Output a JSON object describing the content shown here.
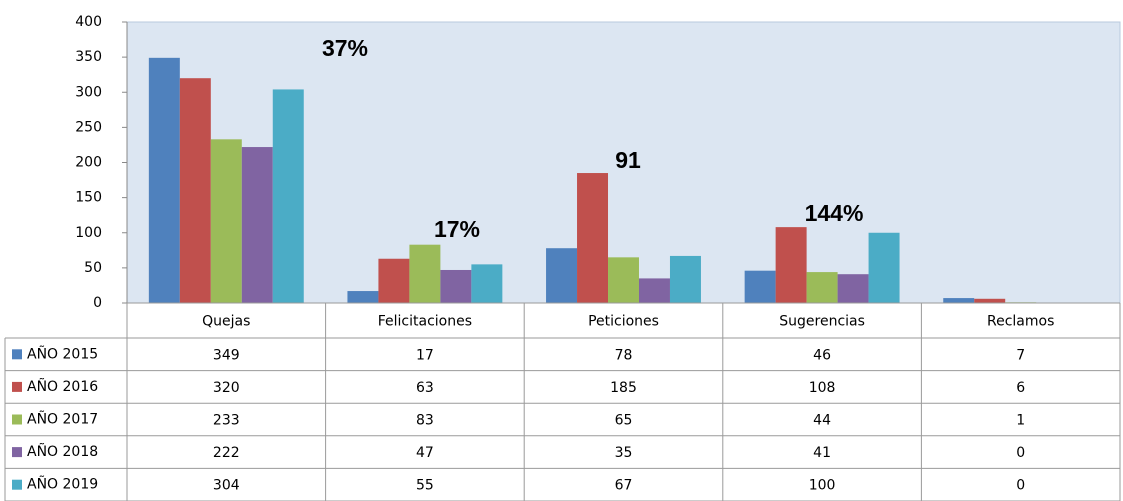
{
  "chart_data": {
    "type": "bar",
    "categories": [
      "Quejas",
      "Felicitaciones",
      "Peticiones",
      "Sugerencias",
      "Reclamos"
    ],
    "series": [
      {
        "name": "AÑO 2015",
        "color": "#4f81bd",
        "values": [
          349,
          17,
          78,
          46,
          7
        ]
      },
      {
        "name": "AÑO 2016",
        "color": "#c0504d",
        "values": [
          320,
          63,
          185,
          108,
          6
        ]
      },
      {
        "name": "AÑO 2017",
        "color": "#9bbb59",
        "values": [
          233,
          83,
          65,
          44,
          1
        ]
      },
      {
        "name": "AÑO 2018",
        "color": "#8064a2",
        "values": [
          222,
          47,
          35,
          41,
          0
        ]
      },
      {
        "name": "AÑO 2019",
        "color": "#4bacc6",
        "values": [
          304,
          55,
          67,
          100,
          0
        ]
      }
    ],
    "annotations": [
      "37%",
      "17%",
      "91",
      "144%"
    ],
    "ylim": [
      0,
      400
    ],
    "yticks": [
      0,
      50,
      100,
      150,
      200,
      250,
      300,
      350,
      400
    ],
    "grid": false
  }
}
